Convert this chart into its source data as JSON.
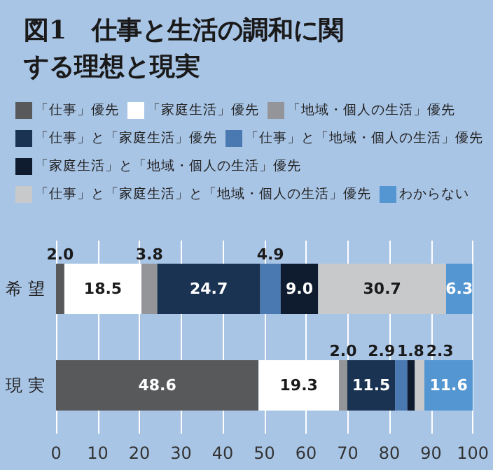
{
  "chart_data": {
    "type": "bar",
    "title": "図1　仕事と生活の調和に関する理想と現実",
    "orientation": "horizontal",
    "stacked": true,
    "categories": [
      "希 望",
      "現 実"
    ],
    "series": [
      {
        "name": "「仕事」優先",
        "color": "#58595b",
        "values": [
          2.0,
          48.6
        ],
        "value_labels": [
          "2.0",
          "48.6"
        ]
      },
      {
        "name": "「家庭生活」優先",
        "color": "#ffffff",
        "values": [
          18.5,
          19.3
        ],
        "value_labels": [
          "18.5",
          "19.3"
        ]
      },
      {
        "name": "「地域・個人の生活」優先",
        "color": "#939598",
        "values": [
          3.8,
          2.0
        ],
        "value_labels": [
          "3.8",
          "2.0"
        ]
      },
      {
        "name": "「仕事」と「家庭生活」優先",
        "color": "#1b3352",
        "values": [
          24.7,
          11.5
        ],
        "value_labels": [
          "24.7",
          "11.5"
        ]
      },
      {
        "name": "「仕事」と「地域・個人の生活」優先",
        "color": "#4a78b0",
        "values": [
          4.9,
          2.9
        ],
        "value_labels": [
          "4.9",
          "2.9"
        ]
      },
      {
        "name": "「家庭生活」と「地域・個人の生活」優先",
        "color": "#0f1c30",
        "values": [
          9.0,
          1.8
        ],
        "value_labels": [
          "9.0",
          "1.8"
        ]
      },
      {
        "name": "「仕事」と「家庭生活」と「地域・個人の生活」優先",
        "color": "#c8c9cb",
        "values": [
          30.7,
          2.3
        ],
        "value_labels": [
          "30.7",
          "2.3"
        ]
      },
      {
        "name": "わからない",
        "color": "#5496d2",
        "values": [
          6.3,
          11.6
        ],
        "value_labels": [
          "6.3",
          "11.6"
        ]
      }
    ],
    "xlim": [
      0,
      100
    ],
    "xticks": [
      0,
      10,
      20,
      30,
      40,
      50,
      60,
      70,
      80,
      90,
      100
    ],
    "grid": "x",
    "legend": "top"
  }
}
